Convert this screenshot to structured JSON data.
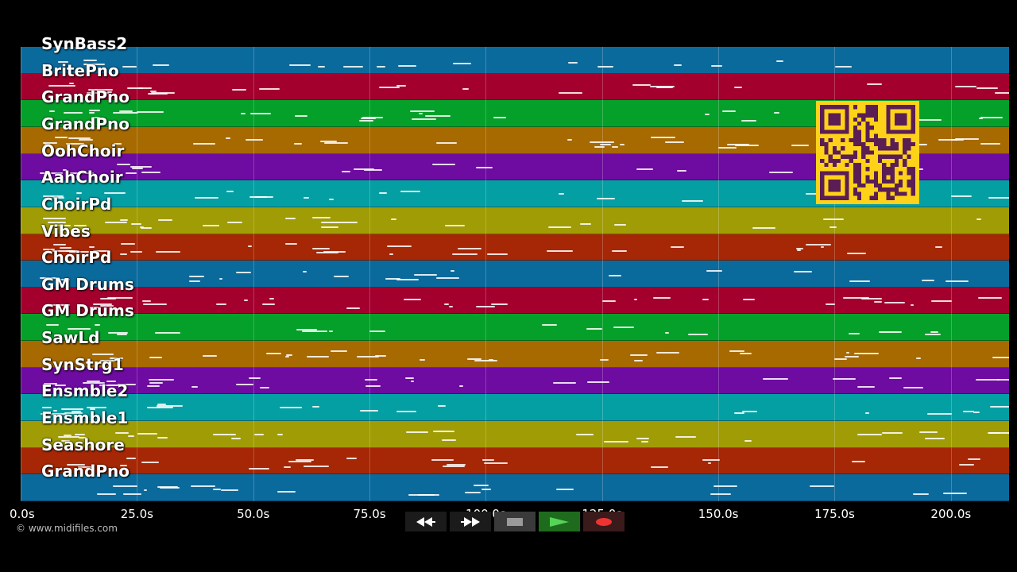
{
  "tracks": [
    {
      "name": "SynBass2",
      "color": "#0b6a9c"
    },
    {
      "name": "BritePno",
      "color": "#a3002e"
    },
    {
      "name": "GrandPno",
      "color": "#05a02a"
    },
    {
      "name": "GrandPno",
      "color": "#a76a00"
    },
    {
      "name": "OohChoir",
      "color": "#6e0ba0"
    },
    {
      "name": "AahChoir",
      "color": "#049fa3"
    },
    {
      "name": "ChoirPd",
      "color": "#a09c05"
    },
    {
      "name": "Vibes",
      "color": "#a52705"
    },
    {
      "name": "ChoirPd",
      "color": "#0b6a9c"
    },
    {
      "name": "GM Drums",
      "color": "#a3002e"
    },
    {
      "name": "GM Drums",
      "color": "#05a02a"
    },
    {
      "name": "SawLd",
      "color": "#a76a00"
    },
    {
      "name": "SynStrg1",
      "color": "#6e0ba0"
    },
    {
      "name": "Ensmble2",
      "color": "#049fa3"
    },
    {
      "name": "Ensmble1",
      "color": "#a09c05"
    },
    {
      "name": "Seashore",
      "color": "#a52705"
    },
    {
      "name": "GrandPno",
      "color": "#0b6a9c"
    }
  ],
  "timeline": {
    "tick_labels": [
      "0.0s",
      "25.0s",
      "50.0s",
      "75.0s",
      "100.0s",
      "125.0s",
      "150.0s",
      "175.0s",
      "200.0s"
    ],
    "max_seconds": 212.5
  },
  "credit": "© www.midifiles.com",
  "controls": [
    {
      "name": "rewind-button",
      "icon": "rewind-icon",
      "bg": "#1b1b1b"
    },
    {
      "name": "fast-forward-button",
      "icon": "fast-forward-icon",
      "bg": "#1b1b1b"
    },
    {
      "name": "stop-button",
      "icon": "stop-icon",
      "bg": "#3a3a3a"
    },
    {
      "name": "play-button",
      "icon": "play-icon",
      "bg": "#1e6b1e"
    },
    {
      "name": "record-button",
      "icon": "record-icon",
      "bg": "#3a1a1a"
    }
  ],
  "qr": {
    "fg": "#5a1e54",
    "bg": "#ffd21a"
  }
}
